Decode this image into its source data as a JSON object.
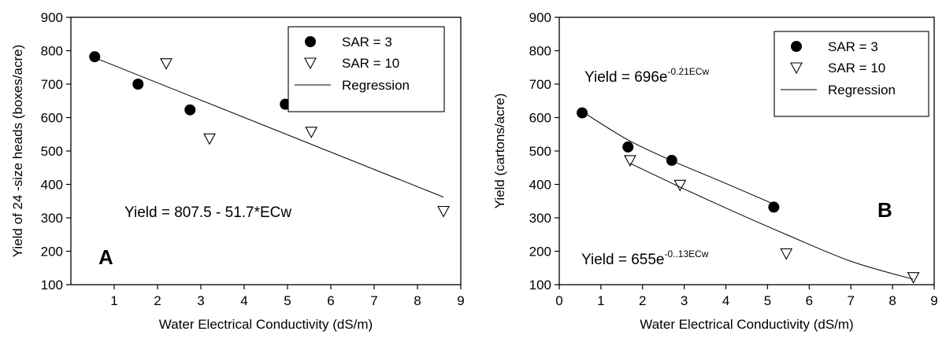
{
  "chart_data": [
    {
      "type": "scatter",
      "panel_label": "A",
      "xlabel": "Water Electrical Conductivity (dS/m)",
      "ylabel": "Yield of 24 -size heads (boxes/acre)",
      "xlim": [
        0,
        9
      ],
      "ylim": [
        100,
        900
      ],
      "xticks": [
        "1",
        "2",
        "3",
        "4",
        "5",
        "6",
        "7",
        "8",
        "9"
      ],
      "yticks": [
        "100",
        "200",
        "300",
        "400",
        "500",
        "600",
        "700",
        "800",
        "900"
      ],
      "legend_position": "top-right",
      "legend": [
        "SAR = 3",
        "SAR = 10",
        "Regression"
      ],
      "equation": {
        "text": "Yield =  807.5 - 51.7*ECw",
        "sup": ""
      },
      "series": [
        {
          "name": "SAR = 3",
          "marker": "filled-circle",
          "x": [
            0.55,
            1.55,
            2.75,
            4.95
          ],
          "y": [
            782,
            700,
            623,
            640
          ]
        },
        {
          "name": "SAR = 10",
          "marker": "open-triangle-down",
          "x": [
            2.2,
            3.2,
            5.55,
            8.6
          ],
          "y": [
            762,
            537,
            557,
            320
          ]
        },
        {
          "name": "Regression",
          "type": "line",
          "x": [
            0.55,
            8.6
          ],
          "y": [
            779,
            362
          ]
        }
      ]
    },
    {
      "type": "scatter",
      "panel_label": "B",
      "xlabel": "Water Electrical Conductivity (dS/m)",
      "ylabel": "Yield (cartons/acre)",
      "xlim": [
        0,
        9
      ],
      "ylim": [
        100,
        900
      ],
      "xticks": [
        "0",
        "1",
        "2",
        "3",
        "4",
        "5",
        "6",
        "7",
        "8",
        "9"
      ],
      "yticks": [
        "100",
        "200",
        "300",
        "400",
        "500",
        "600",
        "700",
        "800",
        "900"
      ],
      "legend_position": "top-right",
      "legend": [
        "SAR = 3",
        "SAR = 10",
        "Regression"
      ],
      "equations": [
        {
          "text": "Yield = 696e",
          "sup": "-0.21ECw"
        },
        {
          "text": "Yield = 655e",
          "sup": "-0..13ECw"
        }
      ],
      "series": [
        {
          "name": "SAR = 3",
          "marker": "filled-circle",
          "x": [
            0.55,
            1.65,
            2.7,
            5.15
          ],
          "y": [
            614,
            512,
            472,
            332
          ]
        },
        {
          "name": "SAR = 10",
          "marker": "open-triangle-down",
          "x": [
            1.7,
            2.9,
            5.45,
            8.5
          ],
          "y": [
            472,
            398,
            193,
            122
          ]
        },
        {
          "name": "Regression",
          "type": "curve",
          "points": [
            [
              0.55,
              618
            ],
            [
              1.65,
              533
            ],
            [
              2.7,
              471
            ],
            [
              3.9,
              408
            ],
            [
              5.15,
              341
            ]
          ]
        },
        {
          "name": "Regression",
          "type": "curve",
          "points": [
            [
              1.7,
              463
            ],
            [
              2.9,
              392
            ],
            [
              4.2,
              318
            ],
            [
              5.45,
              250
            ],
            [
              7.0,
              170
            ],
            [
              8.5,
              116
            ]
          ]
        }
      ]
    }
  ],
  "colors": {
    "axis": "#000000",
    "marker": "#000000",
    "background": "#ffffff"
  }
}
